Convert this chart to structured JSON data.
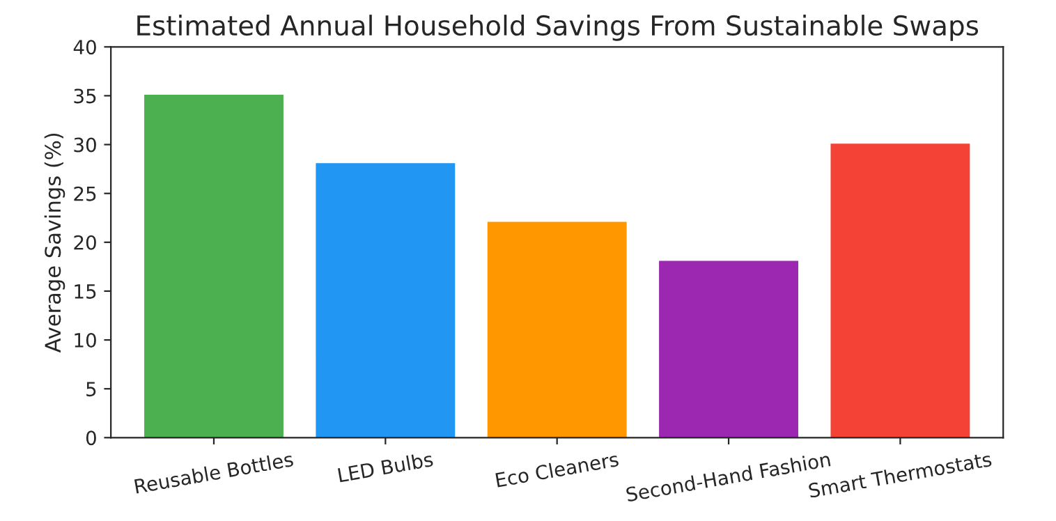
{
  "chart_data": {
    "type": "bar",
    "title": "Estimated Annual Household Savings From Sustainable Swaps",
    "ylabel": "Average Savings (%)",
    "categories": [
      "Reusable Bottles",
      "LED Bulbs",
      "Eco Cleaners",
      "Second-Hand Fashion",
      "Smart Thermostats"
    ],
    "values": [
      35,
      28,
      22,
      18,
      30
    ],
    "colors": [
      "#4caf50",
      "#2196f3",
      "#ff9800",
      "#9c27b0",
      "#f44336"
    ],
    "ylim": [
      0,
      40
    ],
    "yticks": [
      0,
      5,
      10,
      15,
      20,
      25,
      30,
      35,
      40
    ],
    "grid": false
  }
}
